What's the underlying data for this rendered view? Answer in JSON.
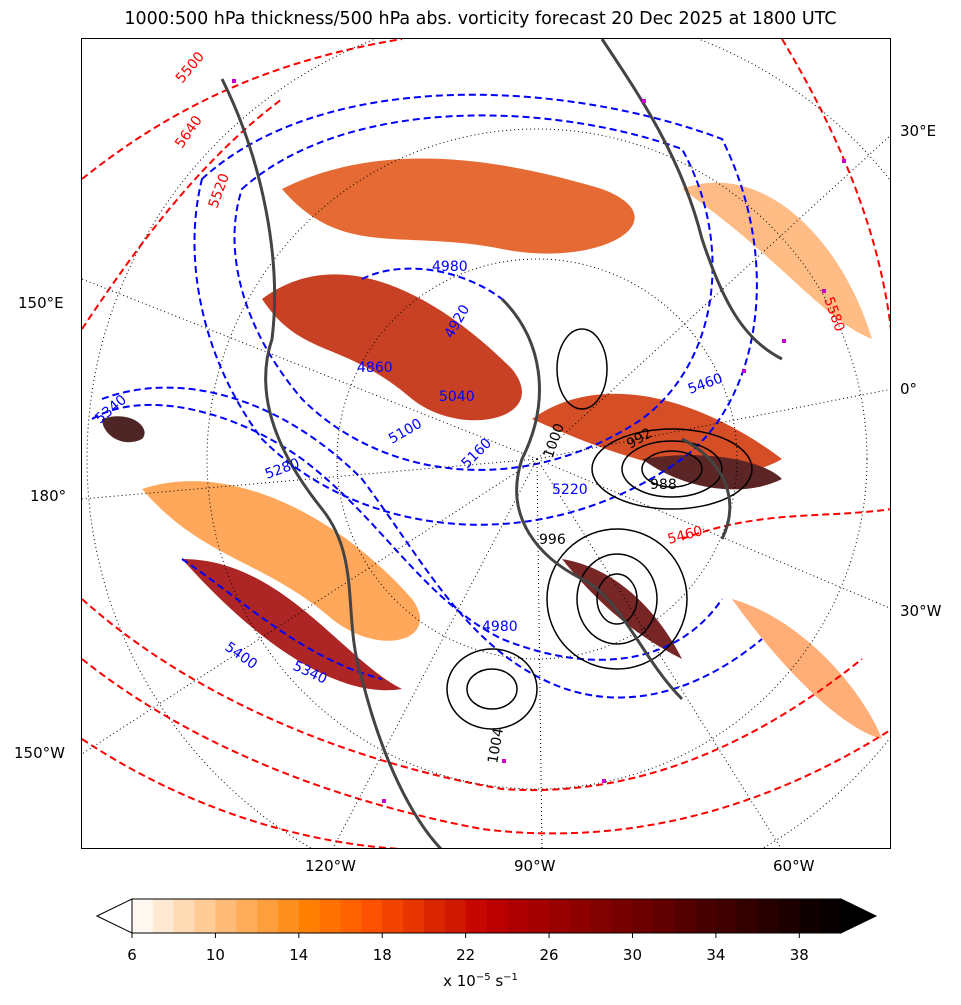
{
  "title": "1000:500 hPa thickness/500 hPa abs. vorticity forecast 20 Dec 2025 at 1800 UTC",
  "map": {
    "lon_labels_right": [
      "30°E",
      "0°",
      "30°W"
    ],
    "lon_labels_left": [
      "150°E",
      "180°",
      "150°W"
    ],
    "lon_labels_bottom": [
      "120°W",
      "90°W",
      "60°W"
    ],
    "contour_labels_blue": [
      "4980",
      "4920",
      "4860",
      "5040",
      "5100",
      "5160",
      "5220",
      "5280",
      "5340",
      "5340",
      "5400",
      "5460",
      "4980"
    ],
    "contour_labels_red": [
      "5500",
      "5640",
      "5520",
      "5460",
      "5580"
    ],
    "contour_labels_black": [
      "992",
      "996",
      "1000",
      "1004",
      "988"
    ],
    "colors": {
      "thickness_cold": "#0000ff",
      "thickness_warm": "#ff0000",
      "mslp": "#000000",
      "coastline": "#444444",
      "markers": "#cc00cc"
    }
  },
  "colorbar": {
    "colormap": "gist_heat_r",
    "min": 6,
    "max": 40,
    "extend": "both",
    "ticks": [
      "6",
      "10",
      "14",
      "18",
      "22",
      "26",
      "30",
      "34",
      "38"
    ],
    "label_prefix": "x 10",
    "label_exp": "−5",
    "label_unit": " s",
    "label_unit_exp": "−1"
  }
}
